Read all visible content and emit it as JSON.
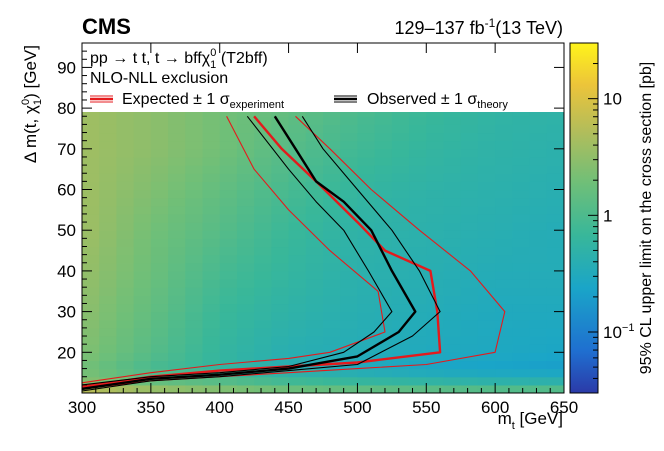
{
  "header": {
    "experiment": "CMS",
    "lumi": "129–137 fb",
    "lumi_sup": "-1",
    "energy": "(13 TeV)"
  },
  "legend": {
    "process_a": "pp → ",
    "process_b": "t t, t → bff",
    "process_c": "χ",
    "process_sub": "1",
    "process_sup": "0",
    "process_d": " (T2bff)",
    "method": "NLO-NLL exclusion",
    "expected_main": "Expected ± 1 σ",
    "expected_sub": "experiment",
    "observed_main": "Observed ± 1 σ",
    "observed_sub": "theory"
  },
  "colors": {
    "expected": "#e41a1c",
    "observed": "#000000",
    "z_low": "#3344b0",
    "z_mid": "#1aa5c8",
    "z_high": "#ffee1a"
  },
  "chart_data": {
    "type": "heatmap",
    "title": "CMS",
    "xlabel_main": "m",
    "xlabel_sub": "t",
    "xlabel_unit": " [GeV]",
    "ylabel_main": "Δ m(t, χ",
    "ylabel_sub": "1",
    "ylabel_sup": "0",
    "ylabel_unit": ") [GeV]",
    "zlabel": "95% CL upper limit on the cross section [pb]",
    "xlim": [
      300,
      650
    ],
    "ylim": [
      10,
      96
    ],
    "zlim": [
      0.03,
      30
    ],
    "zscale": "log",
    "x_ticks": [
      300,
      350,
      400,
      450,
      500,
      550,
      600,
      650
    ],
    "y_ticks": [
      20,
      30,
      40,
      50,
      60,
      70,
      80,
      90
    ],
    "z_ticks": [
      {
        "value": 0.1,
        "label": "10",
        "sup": "−1"
      },
      {
        "value": 1,
        "label": "1",
        "sup": ""
      },
      {
        "value": 10,
        "label": "10",
        "sup": ""
      }
    ],
    "heatmap_grid": {
      "x": [
        300,
        350,
        400,
        450,
        500,
        550,
        600,
        650
      ],
      "y": [
        10,
        12,
        16,
        20,
        30,
        40,
        50,
        60,
        70,
        80
      ],
      "z": [
        [
          12,
          6,
          4,
          3,
          2.5,
          2.3,
          2.0,
          2.0
        ],
        [
          3,
          2,
          1.5,
          1.0,
          0.8,
          0.7,
          0.6,
          0.6
        ],
        [
          2,
          0.9,
          0.6,
          0.4,
          0.3,
          0.25,
          0.22,
          0.2
        ],
        [
          2.5,
          1.2,
          0.6,
          0.4,
          0.35,
          0.3,
          0.28,
          0.25
        ],
        [
          3,
          1.5,
          0.7,
          0.5,
          0.4,
          0.35,
          0.3,
          0.3
        ],
        [
          3.5,
          1.8,
          0.9,
          0.6,
          0.45,
          0.4,
          0.35,
          0.35
        ],
        [
          4,
          2.0,
          1.2,
          0.7,
          0.5,
          0.45,
          0.4,
          0.35
        ],
        [
          4,
          2.5,
          1.5,
          0.9,
          0.6,
          0.5,
          0.45,
          0.4
        ],
        [
          4,
          3,
          2,
          1.2,
          0.8,
          0.6,
          0.5,
          0.45
        ],
        [
          4,
          3,
          2,
          1.5,
          1.0,
          0.7,
          0.55,
          0.5
        ]
      ]
    },
    "series": [
      {
        "name": "Expected",
        "style": "thick-red",
        "points": [
          [
            300,
            11.5
          ],
          [
            350,
            14
          ],
          [
            400,
            15.5
          ],
          [
            450,
            16.5
          ],
          [
            500,
            17.5
          ],
          [
            560,
            20
          ],
          [
            558,
            30
          ],
          [
            553,
            40
          ],
          [
            520,
            45
          ],
          [
            500,
            52
          ],
          [
            470,
            62
          ],
          [
            445,
            70
          ],
          [
            425,
            78
          ]
        ]
      },
      {
        "name": "Expected -1 sigma",
        "style": "thin-red",
        "points": [
          [
            300,
            11
          ],
          [
            350,
            13
          ],
          [
            400,
            14
          ],
          [
            450,
            15
          ],
          [
            500,
            16
          ],
          [
            550,
            17
          ],
          [
            600,
            20
          ],
          [
            607,
            30
          ],
          [
            582,
            40
          ],
          [
            545,
            50
          ],
          [
            510,
            60
          ],
          [
            480,
            70
          ],
          [
            455,
            78
          ]
        ]
      },
      {
        "name": "Expected +1 sigma",
        "style": "thin-red",
        "points": [
          [
            300,
            12.5
          ],
          [
            350,
            15
          ],
          [
            400,
            17
          ],
          [
            450,
            18.5
          ],
          [
            480,
            20
          ],
          [
            520,
            25
          ],
          [
            515,
            35
          ],
          [
            480,
            45
          ],
          [
            450,
            55
          ],
          [
            425,
            65
          ],
          [
            405,
            78
          ]
        ]
      },
      {
        "name": "Observed",
        "style": "thick-black",
        "points": [
          [
            300,
            11
          ],
          [
            350,
            13.5
          ],
          [
            400,
            14.5
          ],
          [
            450,
            16
          ],
          [
            500,
            19
          ],
          [
            530,
            25
          ],
          [
            542,
            30
          ],
          [
            525,
            40
          ],
          [
            510,
            50
          ],
          [
            490,
            57
          ],
          [
            470,
            62
          ],
          [
            455,
            70
          ],
          [
            440,
            78
          ]
        ]
      },
      {
        "name": "Observed -1 sigma",
        "style": "thin-black",
        "points": [
          [
            300,
            10.5
          ],
          [
            350,
            13
          ],
          [
            400,
            14
          ],
          [
            450,
            15.5
          ],
          [
            500,
            17
          ],
          [
            540,
            24
          ],
          [
            560,
            30
          ],
          [
            545,
            40
          ],
          [
            525,
            50
          ],
          [
            500,
            60
          ],
          [
            475,
            70
          ],
          [
            460,
            78
          ]
        ]
      },
      {
        "name": "Observed +1 sigma",
        "style": "thin-black",
        "points": [
          [
            300,
            12
          ],
          [
            350,
            14
          ],
          [
            400,
            15
          ],
          [
            450,
            16.5
          ],
          [
            490,
            20
          ],
          [
            512,
            25
          ],
          [
            525,
            30
          ],
          [
            508,
            40
          ],
          [
            490,
            50
          ],
          [
            470,
            57
          ],
          [
            450,
            65
          ],
          [
            420,
            78
          ]
        ]
      }
    ]
  }
}
